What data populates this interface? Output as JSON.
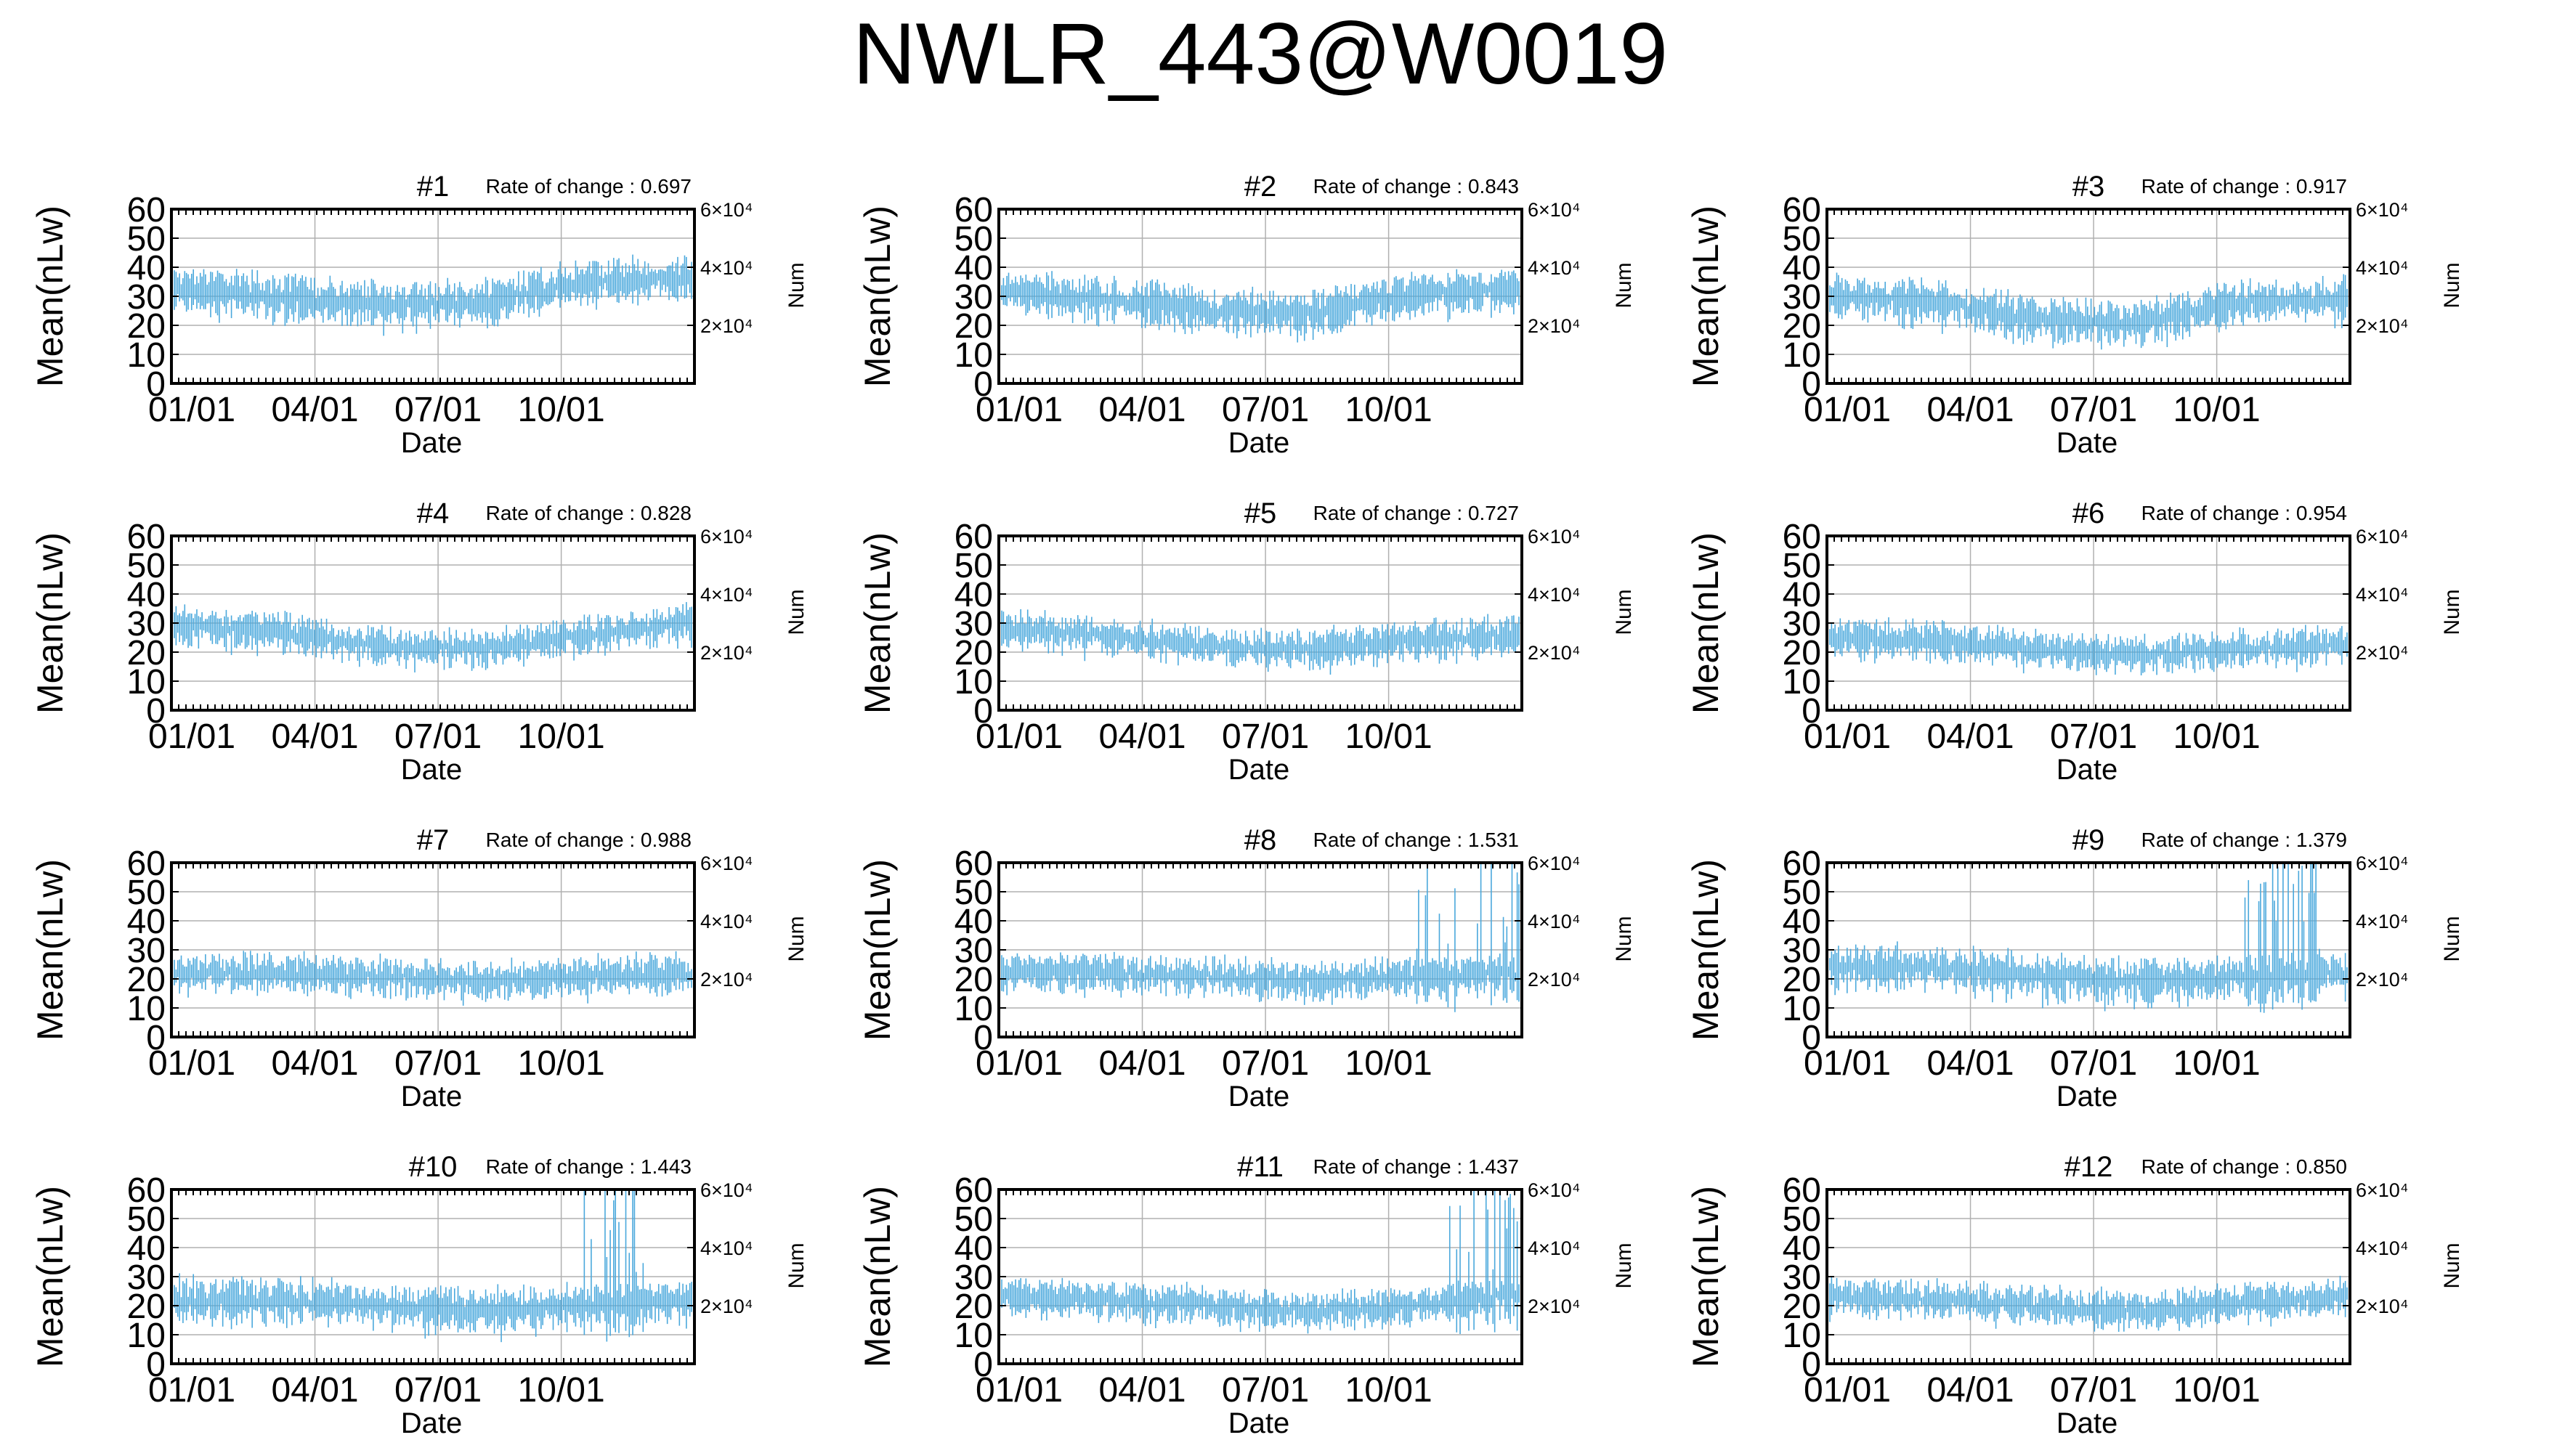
{
  "figure": {
    "title": "NWLR_443@W0019",
    "colors": {
      "bars": "#4aa8dc",
      "frame": "#000000",
      "grid": "#b0b0b0"
    }
  },
  "chart_data": {
    "type": "line",
    "x_axis": {
      "label": "Date",
      "tick_labels": [
        "01/01",
        "04/01",
        "07/01",
        "10/01"
      ]
    },
    "y_axis_left": {
      "label": "Mean(nLw)",
      "range": [
        0,
        60
      ],
      "ticks": [
        0,
        10,
        20,
        30,
        40,
        50,
        60
      ]
    },
    "y_axis_right": {
      "label": "Num",
      "tick_labels": [
        "6×10⁴",
        "4×10⁴",
        "2×10⁴"
      ],
      "tick_mean_values": [
        60,
        40,
        20
      ]
    },
    "grid": true,
    "rate_label": "Rate of change : ",
    "panels": [
      {
        "title": "#1",
        "rate": "0.697",
        "level": [
          33,
          30,
          27,
          28,
          35,
          36
        ],
        "noise": 6,
        "spikes": []
      },
      {
        "title": "#2",
        "rate": "0.843",
        "level": [
          32,
          29,
          25,
          24,
          31,
          32
        ],
        "noise": 6,
        "spikes": []
      },
      {
        "title": "#3",
        "rate": "0.917",
        "level": [
          30,
          28,
          22,
          21,
          28,
          29
        ],
        "noise": 6,
        "spikes": []
      },
      {
        "title": "#4",
        "rate": "0.828",
        "level": [
          29,
          27,
          22,
          21,
          26,
          30
        ],
        "noise": 5,
        "spikes": []
      },
      {
        "title": "#5",
        "rate": "0.727",
        "level": [
          28,
          26,
          22,
          21,
          24,
          26
        ],
        "noise": 5,
        "spikes": []
      },
      {
        "title": "#6",
        "rate": "0.954",
        "level": [
          25,
          24,
          21,
          19,
          21,
          23
        ],
        "noise": 5,
        "spikes": []
      },
      {
        "title": "#7",
        "rate": "0.988",
        "level": [
          22,
          22,
          21,
          19,
          21,
          22
        ],
        "noise": 5,
        "spikes": []
      },
      {
        "title": "#8",
        "rate": "1.531",
        "level": [
          22,
          22,
          21,
          19,
          21,
          22
        ],
        "noise": 5,
        "spikes": [
          [
            0.8,
            1.0
          ]
        ]
      },
      {
        "title": "#9",
        "rate": "1.379",
        "level": [
          24,
          24,
          21,
          19,
          21,
          22
        ],
        "noise": 6,
        "spikes": [
          [
            0.8,
            0.95
          ]
        ]
      },
      {
        "title": "#10",
        "rate": "1.443",
        "level": [
          22,
          22,
          20,
          18,
          20,
          22
        ],
        "noise": 6,
        "spikes": [
          [
            0.79,
            0.92
          ]
        ]
      },
      {
        "title": "#11",
        "rate": "1.437",
        "level": [
          23,
          22,
          20,
          18,
          20,
          24
        ],
        "noise": 5,
        "spikes": [
          [
            0.86,
            1.0
          ]
        ]
      },
      {
        "title": "#12",
        "rate": "0.850",
        "level": [
          23,
          22,
          20,
          18,
          21,
          23
        ],
        "noise": 5,
        "spikes": []
      }
    ]
  }
}
